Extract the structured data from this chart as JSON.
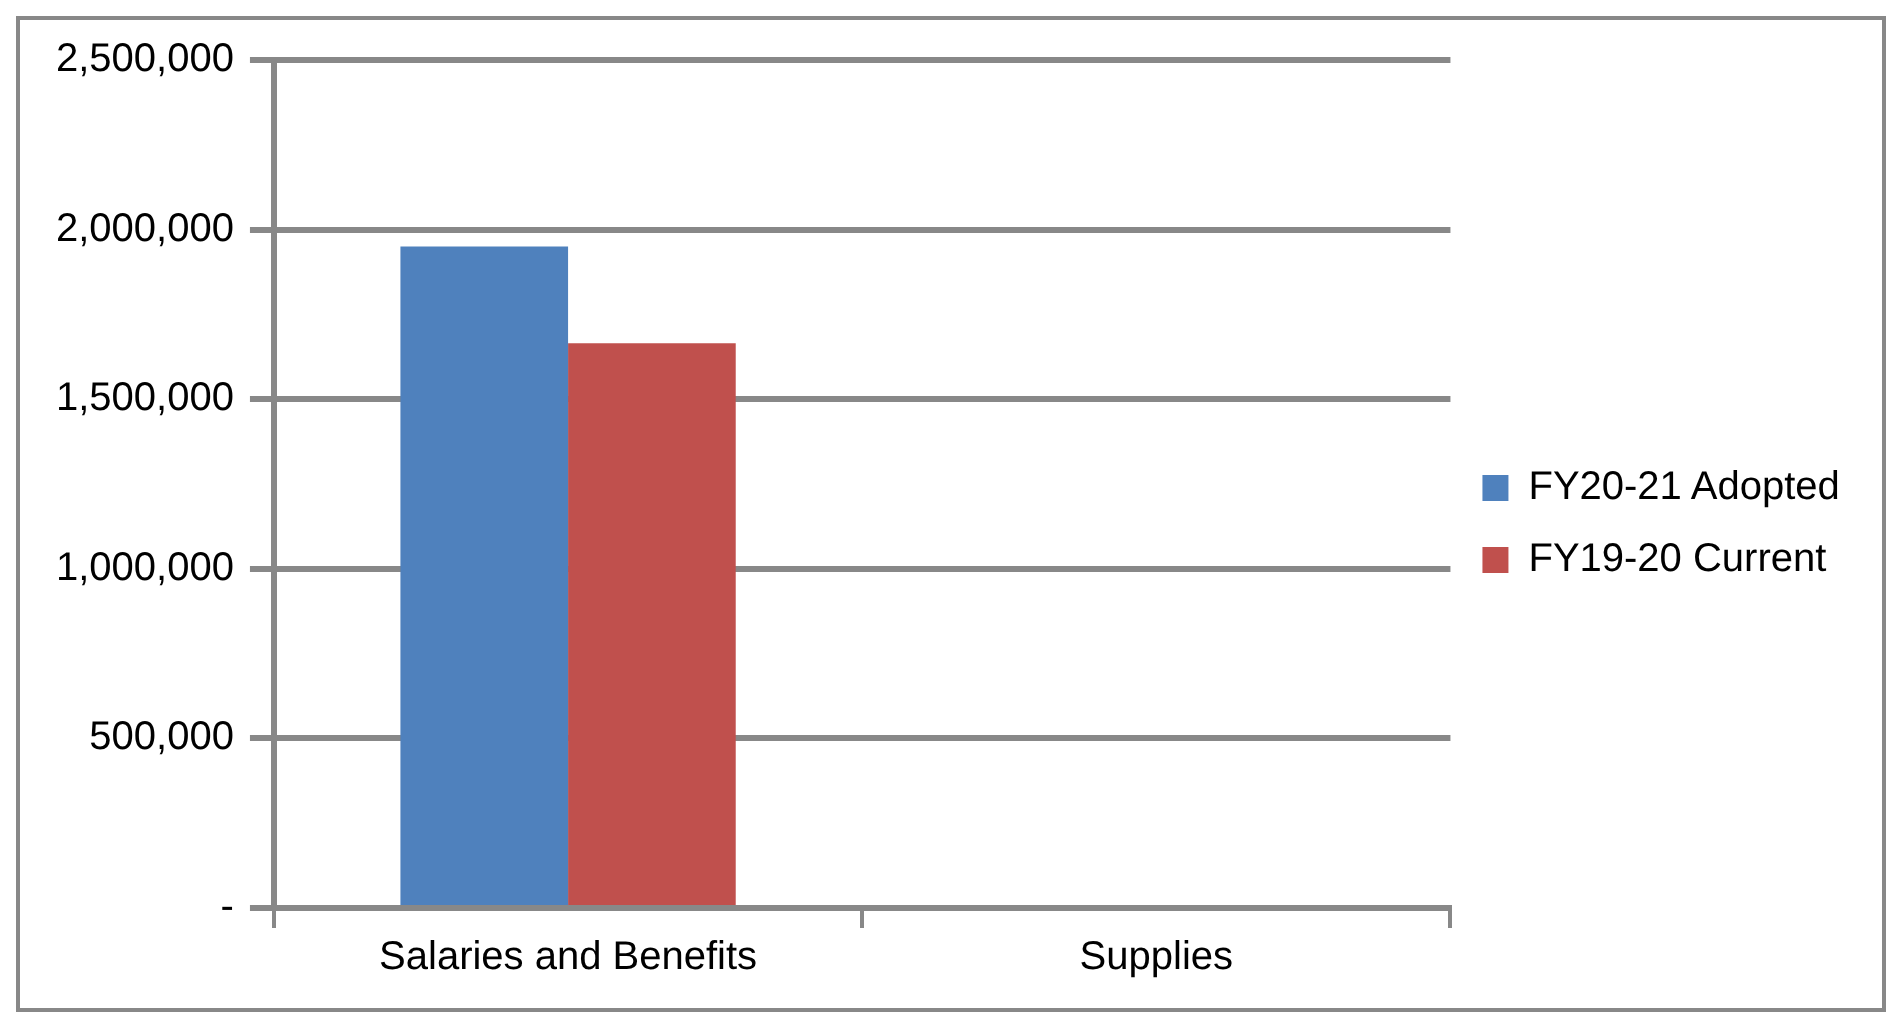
{
  "chart_data": {
    "type": "bar",
    "categories": [
      "Salaries and Benefits",
      "Supplies"
    ],
    "series": [
      {
        "name": "FY20-21 Adopted",
        "color": "#4f81bd",
        "values": [
          1950000,
          null
        ]
      },
      {
        "name": "FY19-20 Current",
        "color": "#c0504d",
        "values": [
          1665000,
          null
        ]
      }
    ],
    "ylim": [
      0,
      2500000
    ],
    "yticks": [
      {
        "value": 0,
        "label": "-"
      },
      {
        "value": 500000,
        "label": "500,000"
      },
      {
        "value": 1000000,
        "label": "1,000,000"
      },
      {
        "value": 1500000,
        "label": "1,500,000"
      },
      {
        "value": 2000000,
        "label": "2,000,000"
      },
      {
        "value": 2500000,
        "label": "2,500,000"
      }
    ],
    "grid": "y",
    "legend": "right"
  }
}
